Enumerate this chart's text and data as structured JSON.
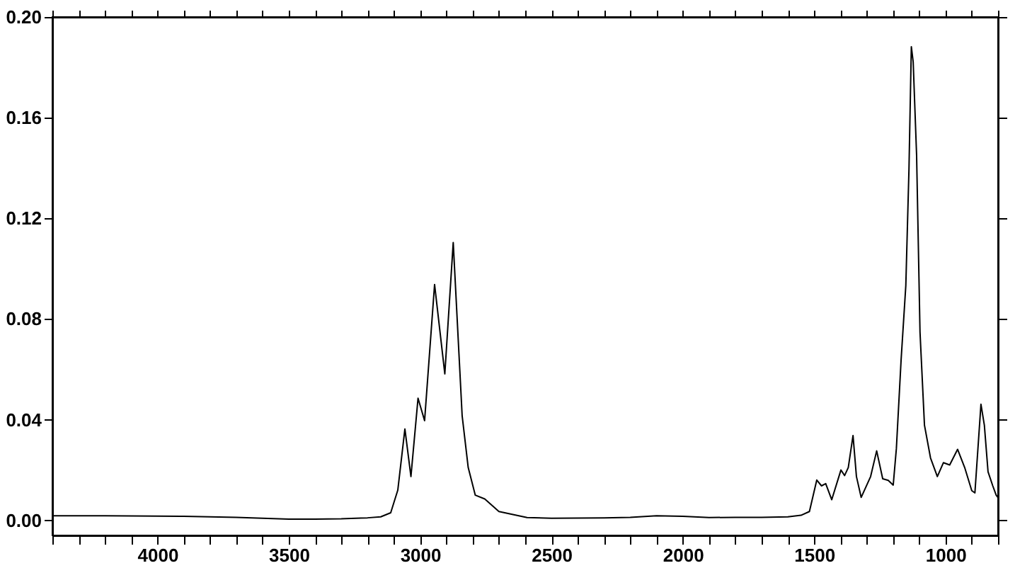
{
  "chart_data": {
    "type": "line",
    "x": [
      4400,
      4200,
      4000,
      3900,
      3800,
      3700,
      3600,
      3500,
      3400,
      3300,
      3200,
      3150,
      3112,
      3085,
      3058,
      3035,
      3008,
      2983,
      2945,
      2906,
      2874,
      2840,
      2817,
      2790,
      2754,
      2700,
      2593,
      2500,
      2400,
      2300,
      2200,
      2100,
      2000,
      1900,
      1800,
      1700,
      1600,
      1550,
      1518,
      1490,
      1472,
      1456,
      1433,
      1398,
      1384,
      1370,
      1352,
      1339,
      1321,
      1285,
      1262,
      1239,
      1218,
      1199,
      1187,
      1169,
      1151,
      1139,
      1130,
      1123,
      1110,
      1097,
      1080,
      1057,
      1031,
      1008,
      984,
      954,
      927,
      900,
      888,
      865,
      852,
      838,
      820,
      807,
      800
    ],
    "series": [
      {
        "color": "#000000",
        "values": [
          0.0018,
          0.0018,
          0.0017,
          0.0016,
          0.0014,
          0.0012,
          0.0008,
          0.0005,
          0.0005,
          0.0006,
          0.001,
          0.0014,
          0.003,
          0.012,
          0.0363,
          0.0174,
          0.0485,
          0.0396,
          0.0937,
          0.0582,
          0.1104,
          0.0415,
          0.021,
          0.01,
          0.0085,
          0.0035,
          0.0011,
          0.0008,
          0.0009,
          0.001,
          0.0012,
          0.0018,
          0.0016,
          0.0011,
          0.0012,
          0.0012,
          0.0014,
          0.002,
          0.0035,
          0.016,
          0.0137,
          0.0146,
          0.0082,
          0.02,
          0.0178,
          0.021,
          0.0337,
          0.0174,
          0.0091,
          0.0174,
          0.0276,
          0.0165,
          0.0159,
          0.014,
          0.0285,
          0.0637,
          0.0933,
          0.1396,
          0.1882,
          0.1822,
          0.1452,
          0.0748,
          0.0378,
          0.0248,
          0.0174,
          0.0229,
          0.022,
          0.0282,
          0.021,
          0.0118,
          0.0109,
          0.0461,
          0.0378,
          0.0193,
          0.0137,
          0.01,
          0.009
        ]
      }
    ],
    "xlim": [
      4400,
      800
    ],
    "xticks": [
      {
        "value": 4400,
        "label": null
      },
      {
        "value": 4300,
        "label": null
      },
      {
        "value": 4200,
        "label": null
      },
      {
        "value": 4100,
        "label": null
      },
      4000,
      {
        "value": 3900,
        "label": null
      },
      {
        "value": 3800,
        "label": null
      },
      {
        "value": 3700,
        "label": null
      },
      {
        "value": 3600,
        "label": null
      },
      3500,
      {
        "value": 3400,
        "label": null
      },
      {
        "value": 3300,
        "label": null
      },
      {
        "value": 3200,
        "label": null
      },
      {
        "value": 3100,
        "label": null
      },
      3000,
      {
        "value": 2900,
        "label": null
      },
      {
        "value": 2800,
        "label": null
      },
      {
        "value": 2700,
        "label": null
      },
      {
        "value": 2600,
        "label": null
      },
      2500,
      {
        "value": 2400,
        "label": null
      },
      {
        "value": 2300,
        "label": null
      },
      {
        "value": 2200,
        "label": null
      },
      {
        "value": 2100,
        "label": null
      },
      2000,
      {
        "value": 1900,
        "label": null
      },
      {
        "value": 1800,
        "label": null
      },
      {
        "value": 1700,
        "label": null
      },
      {
        "value": 1600,
        "label": null
      },
      1500,
      {
        "value": 1400,
        "label": null
      },
      {
        "value": 1300,
        "label": null
      },
      {
        "value": 1200,
        "label": null
      },
      {
        "value": 1100,
        "label": null
      },
      1000,
      {
        "value": 900,
        "label": null
      },
      {
        "value": 800,
        "label": null
      }
    ],
    "ylim": [
      -0.006,
      0.2
    ],
    "yticks": [
      {
        "value": 0,
        "label": "0.00"
      },
      {
        "value": 0.04,
        "label": "0.04"
      },
      {
        "value": 0.08,
        "label": "0.08"
      },
      {
        "value": 0.12,
        "label": "0.12"
      },
      {
        "value": 0.16,
        "label": "0.16"
      },
      {
        "value": 0.2,
        "label": "0.20"
      }
    ],
    "grid": false,
    "marker": "none",
    "line_style": "solid"
  }
}
